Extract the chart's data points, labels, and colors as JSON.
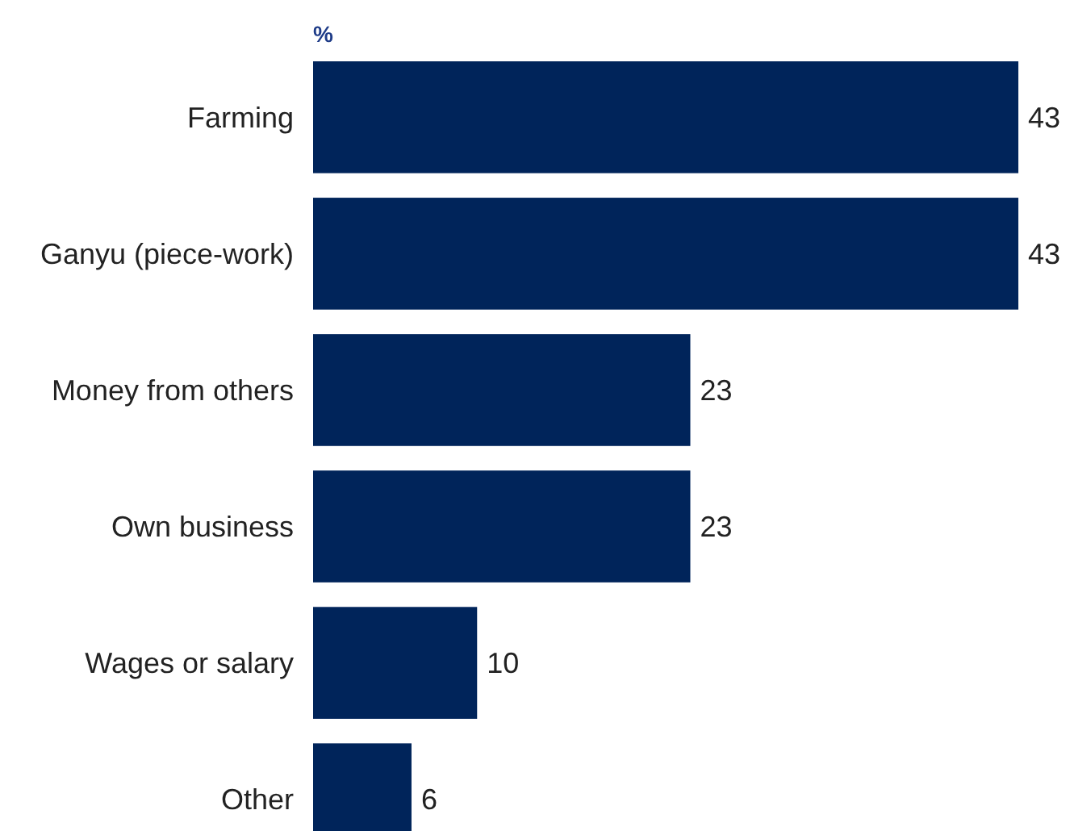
{
  "chart_data": {
    "type": "bar",
    "orientation": "horizontal",
    "xlabel": "%",
    "categories": [
      "Farming",
      "Ganyu (piece-work)",
      "Money from others",
      "Own business",
      "Wages or salary",
      "Other"
    ],
    "values": [
      43,
      43,
      23,
      23,
      10,
      6
    ],
    "color": "#00245a",
    "data_labels": true
  }
}
